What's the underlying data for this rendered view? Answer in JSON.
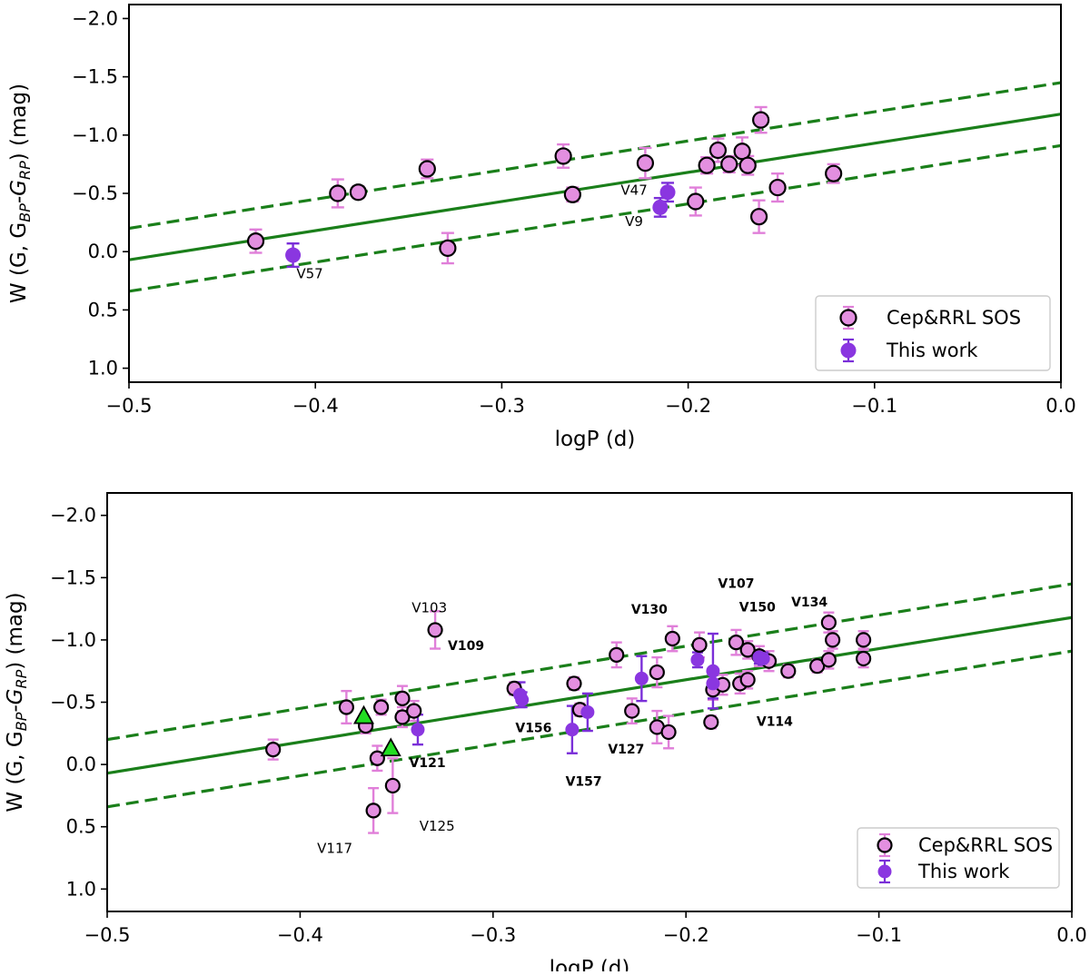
{
  "colors": {
    "fit_line": "#1a7f1a",
    "sos_fill": "#e38fe0",
    "sos_err": "#e07fd9",
    "work_fill": "#8a36e0",
    "work_err": "#7a2fd8",
    "triangle": "#22dd22"
  },
  "chart_data": [
    {
      "type": "scatter",
      "title": "",
      "xlabel": "logP (d)",
      "ylabel_main": "W (G, G",
      "ylabel_sub1": "BP",
      "ylabel_mid": "-G",
      "ylabel_sub2": "RP",
      "ylabel_end": ") (mag)",
      "xlim": [
        -0.5,
        0.0
      ],
      "ylim": [
        1.12,
        -2.12
      ],
      "y_inverted": true,
      "x_ticks": [
        -0.5,
        -0.4,
        -0.3,
        -0.2,
        -0.1,
        0.0
      ],
      "x_tick_labels": [
        "−0.5",
        "−0.4",
        "−0.3",
        "−0.2",
        "−0.1",
        "0.0"
      ],
      "y_ticks": [
        -2.0,
        -1.5,
        -1.0,
        -0.5,
        0.0,
        0.5,
        1.0
      ],
      "y_tick_labels": [
        "−2.0",
        "−1.5",
        "−1.0",
        "−0.5",
        "0.0",
        "0.5",
        "1.0"
      ],
      "legend_position": "lower-right",
      "legend": [
        "Cep&RRL SOS",
        "This work"
      ],
      "fit": {
        "slope": -2.5,
        "intercept": -1.18,
        "offset": 0.27
      },
      "sos_points": [
        {
          "x": -0.432,
          "y": -0.09,
          "err": 0.1
        },
        {
          "x": -0.388,
          "y": -0.5,
          "err": 0.12
        },
        {
          "x": -0.377,
          "y": -0.51,
          "err": 0.05
        },
        {
          "x": -0.34,
          "y": -0.71,
          "err": 0.08
        },
        {
          "x": -0.329,
          "y": -0.03,
          "err": 0.13
        },
        {
          "x": -0.267,
          "y": -0.82,
          "err": 0.1
        },
        {
          "x": -0.262,
          "y": -0.49,
          "err": 0.06
        },
        {
          "x": -0.223,
          "y": -0.76,
          "err": 0.13
        },
        {
          "x": -0.196,
          "y": -0.43,
          "err": 0.12
        },
        {
          "x": -0.19,
          "y": -0.74,
          "err": 0.07
        },
        {
          "x": -0.184,
          "y": -0.87,
          "err": 0.1
        },
        {
          "x": -0.178,
          "y": -0.75,
          "err": 0.07
        },
        {
          "x": -0.171,
          "y": -0.86,
          "err": 0.12
        },
        {
          "x": -0.168,
          "y": -0.74,
          "err": 0.08
        },
        {
          "x": -0.162,
          "y": -0.3,
          "err": 0.14
        },
        {
          "x": -0.161,
          "y": -1.13,
          "err": 0.11
        },
        {
          "x": -0.152,
          "y": -0.55,
          "err": 0.12
        },
        {
          "x": -0.122,
          "y": -0.67,
          "err": 0.08
        }
      ],
      "work_points": [
        {
          "x": -0.412,
          "y": 0.03,
          "err": 0.1
        },
        {
          "x": -0.215,
          "y": -0.38,
          "err": 0.08
        },
        {
          "x": -0.211,
          "y": -0.51,
          "err": 0.08
        }
      ],
      "triangles": [],
      "annotations": [
        {
          "text": "V57",
          "x": -0.403,
          "y": 0.23,
          "bold": false
        },
        {
          "text": "V47",
          "x": -0.229,
          "y": -0.49,
          "bold": false
        },
        {
          "text": "V9",
          "x": -0.229,
          "y": -0.22,
          "bold": false
        }
      ]
    },
    {
      "type": "scatter",
      "title": "",
      "xlabel": "logP (d)",
      "ylabel_main": "W (G, G",
      "ylabel_sub1": "BP",
      "ylabel_mid": "-G",
      "ylabel_sub2": "RP",
      "ylabel_end": ") (mag)",
      "xlim": [
        -0.5,
        0.0
      ],
      "ylim": [
        1.18,
        -2.18
      ],
      "y_inverted": true,
      "x_ticks": [
        -0.5,
        -0.4,
        -0.3,
        -0.2,
        -0.1,
        0.0
      ],
      "x_tick_labels": [
        "−0.5",
        "−0.4",
        "−0.3",
        "−0.2",
        "−0.1",
        "0.0"
      ],
      "y_ticks": [
        -2.0,
        -1.5,
        -1.0,
        -0.5,
        0.0,
        0.5,
        1.0
      ],
      "y_tick_labels": [
        "−2.0",
        "−1.5",
        "−1.0",
        "−0.5",
        "0.0",
        "0.5",
        "1.0"
      ],
      "legend_position": "lower-right",
      "legend": [
        "Cep&RRL SOS",
        "This work"
      ],
      "fit": {
        "slope": -2.5,
        "intercept": -1.18,
        "offset": 0.27
      },
      "sos_points": [
        {
          "x": -0.414,
          "y": -0.12,
          "err": 0.08
        },
        {
          "x": -0.376,
          "y": -0.46,
          "err": 0.13
        },
        {
          "x": -0.366,
          "y": -0.31,
          "err": 0.06
        },
        {
          "x": -0.36,
          "y": -0.05,
          "err": 0.1
        },
        {
          "x": -0.358,
          "y": -0.46,
          "err": 0.06
        },
        {
          "x": -0.347,
          "y": -0.53,
          "err": 0.1
        },
        {
          "x": -0.347,
          "y": -0.38,
          "err": 0.08
        },
        {
          "x": -0.341,
          "y": -0.43,
          "err": 0.08
        },
        {
          "x": -0.352,
          "y": 0.17,
          "err": 0.22
        },
        {
          "x": -0.362,
          "y": 0.37,
          "err": 0.18
        },
        {
          "x": -0.33,
          "y": -1.08,
          "err": 0.15
        },
        {
          "x": -0.289,
          "y": -0.61,
          "err": 0.05
        },
        {
          "x": -0.258,
          "y": -0.65,
          "err": 0.05
        },
        {
          "x": -0.255,
          "y": -0.44,
          "err": 0.05
        },
        {
          "x": -0.236,
          "y": -0.88,
          "err": 0.1
        },
        {
          "x": -0.228,
          "y": -0.43,
          "err": 0.1
        },
        {
          "x": -0.215,
          "y": -0.74,
          "err": 0.12
        },
        {
          "x": -0.215,
          "y": -0.3,
          "err": 0.13
        },
        {
          "x": -0.209,
          "y": -0.26,
          "err": 0.13
        },
        {
          "x": -0.207,
          "y": -1.01,
          "err": 0.1
        },
        {
          "x": -0.193,
          "y": -0.96,
          "err": 0.1
        },
        {
          "x": -0.187,
          "y": -0.34,
          "err": 0.05
        },
        {
          "x": -0.186,
          "y": -0.6,
          "err": 0.08
        },
        {
          "x": -0.181,
          "y": -0.64,
          "err": 0.08
        },
        {
          "x": -0.174,
          "y": -0.98,
          "err": 0.1
        },
        {
          "x": -0.172,
          "y": -0.65,
          "err": 0.08
        },
        {
          "x": -0.168,
          "y": -0.68,
          "err": 0.07
        },
        {
          "x": -0.168,
          "y": -0.92,
          "err": 0.07
        },
        {
          "x": -0.162,
          "y": -0.87,
          "err": 0.08
        },
        {
          "x": -0.157,
          "y": -0.83,
          "err": 0.08
        },
        {
          "x": -0.147,
          "y": -0.75,
          "err": 0.05
        },
        {
          "x": -0.132,
          "y": -0.79,
          "err": 0.05
        },
        {
          "x": -0.126,
          "y": -1.14,
          "err": 0.08
        },
        {
          "x": -0.126,
          "y": -0.84,
          "err": 0.07
        },
        {
          "x": -0.124,
          "y": -1.0,
          "err": 0.07
        },
        {
          "x": -0.108,
          "y": -1.0,
          "err": 0.07
        },
        {
          "x": -0.108,
          "y": -0.85,
          "err": 0.07
        }
      ],
      "work_points": [
        {
          "x": -0.339,
          "y": -0.28,
          "err": 0.12
        },
        {
          "x": -0.286,
          "y": -0.56,
          "err": 0.1
        },
        {
          "x": -0.285,
          "y": -0.52,
          "err": 0.06
        },
        {
          "x": -0.259,
          "y": -0.28,
          "err": 0.19
        },
        {
          "x": -0.251,
          "y": -0.42,
          "err": 0.15
        },
        {
          "x": -0.223,
          "y": -0.69,
          "err": 0.18
        },
        {
          "x": -0.194,
          "y": -0.84,
          "err": 0.06
        },
        {
          "x": -0.186,
          "y": -0.75,
          "err": 0.3
        },
        {
          "x": -0.186,
          "y": -0.65,
          "err": 0.12
        },
        {
          "x": -0.162,
          "y": -0.86,
          "err": 0.05
        },
        {
          "x": -0.16,
          "y": -0.85,
          "err": 0.05
        }
      ],
      "triangles": [
        {
          "x": -0.367,
          "y": -0.39
        },
        {
          "x": -0.353,
          "y": -0.13
        }
      ],
      "annotations": [
        {
          "text": "V103",
          "x": -0.333,
          "y": -1.22,
          "bold": false
        },
        {
          "text": "V107",
          "x": -0.174,
          "y": -1.42,
          "bold": true
        },
        {
          "text": "V130",
          "x": -0.219,
          "y": -1.21,
          "bold": true
        },
        {
          "text": "V150",
          "x": -0.163,
          "y": -1.23,
          "bold": true
        },
        {
          "text": "V134",
          "x": -0.136,
          "y": -1.27,
          "bold": true
        },
        {
          "text": "V109",
          "x": -0.314,
          "y": -0.92,
          "bold": true
        },
        {
          "text": "V156",
          "x": -0.279,
          "y": -0.26,
          "bold": true
        },
        {
          "text": "V127",
          "x": -0.231,
          "y": -0.09,
          "bold": true
        },
        {
          "text": "V114",
          "x": -0.154,
          "y": -0.31,
          "bold": true
        },
        {
          "text": "V121",
          "x": -0.334,
          "y": 0.02,
          "bold": true
        },
        {
          "text": "V157",
          "x": -0.253,
          "y": 0.17,
          "bold": true
        },
        {
          "text": "V125",
          "x": -0.329,
          "y": 0.53,
          "bold": false
        },
        {
          "text": "V117",
          "x": -0.382,
          "y": 0.71,
          "bold": false
        }
      ]
    }
  ]
}
